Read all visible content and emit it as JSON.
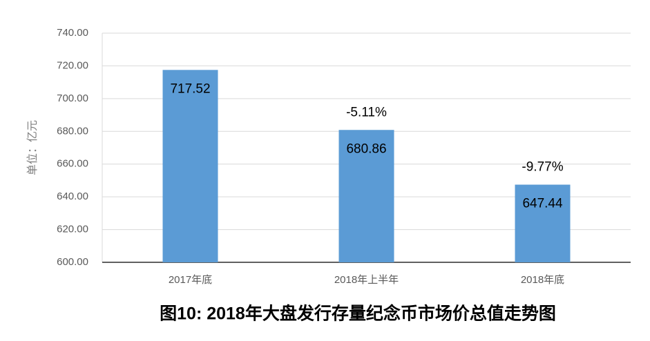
{
  "chart_data": {
    "type": "bar",
    "title": "图10: 2018年大盘发行存量纪念币市场价总值走势图",
    "y_label": "单位：亿元",
    "categories": [
      "2017年底",
      "2018年上半年",
      "2018年底"
    ],
    "values": [
      717.52,
      680.86,
      647.44
    ],
    "change_labels": [
      null,
      "-5.11%",
      "-9.77%"
    ],
    "color": "#5b9bd5",
    "ylim": [
      600,
      740
    ],
    "yticks": [
      {
        "value": 600,
        "label": "600.00"
      },
      {
        "value": 620,
        "label": "620.00"
      },
      {
        "value": 640,
        "label": "640.00"
      },
      {
        "value": 660,
        "label": "660.00"
      },
      {
        "value": 680,
        "label": "680.00"
      },
      {
        "value": 700,
        "label": "700.00"
      },
      {
        "value": 720,
        "label": "720.00"
      },
      {
        "value": 740,
        "label": "740.00"
      }
    ],
    "grid": true
  }
}
